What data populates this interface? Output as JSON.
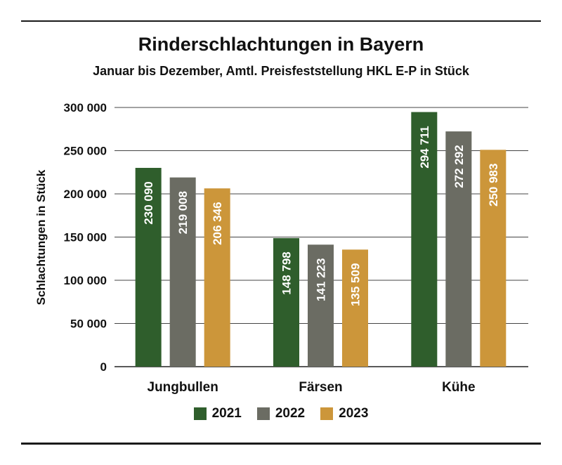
{
  "chart_data": {
    "type": "bar",
    "title": "Rinderschlachtungen in Bayern",
    "subtitle": "Januar bis Dezember, Amtl. Preisfeststellung HKL E-P in Stück",
    "ylabel": "Schlachtungen in Stück",
    "xlabel": "",
    "ylim": [
      0,
      300000
    ],
    "yticks": [
      0,
      50000,
      100000,
      150000,
      200000,
      250000,
      300000
    ],
    "ytick_labels": [
      "0",
      "50 000",
      "100 000",
      "150 000",
      "200 000",
      "250 000",
      "300 000"
    ],
    "categories": [
      "Jungbullen",
      "Färsen",
      "Kühe"
    ],
    "series": [
      {
        "name": "2021",
        "color": "#2f5e2c",
        "values": [
          230090,
          148798,
          294711
        ],
        "labels": [
          "230 090",
          "148 798",
          "294 711"
        ]
      },
      {
        "name": "2022",
        "color": "#6b6c63",
        "values": [
          219008,
          141223,
          272292
        ],
        "labels": [
          "219 008",
          "141 223",
          "272 292"
        ]
      },
      {
        "name": "2023",
        "color": "#cc963a",
        "values": [
          206346,
          135509,
          250983
        ],
        "labels": [
          "206 346",
          "135 509",
          "250 983"
        ]
      }
    ],
    "grid": true,
    "legend_position": "bottom"
  }
}
